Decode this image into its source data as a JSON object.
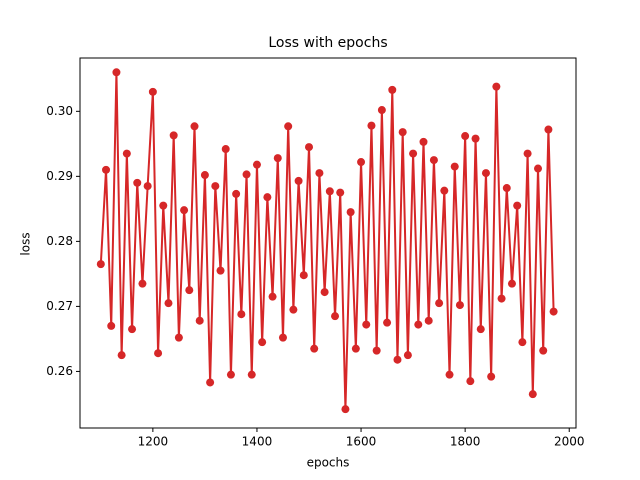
{
  "chart_data": {
    "type": "line",
    "title": "Loss with epochs",
    "x_label": "epochs",
    "y_label": "loss",
    "x": [
      1100,
      1110,
      1120,
      1130,
      1140,
      1150,
      1160,
      1170,
      1180,
      1190,
      1200,
      1210,
      1220,
      1230,
      1240,
      1250,
      1260,
      1270,
      1280,
      1290,
      1300,
      1310,
      1320,
      1330,
      1340,
      1350,
      1360,
      1370,
      1380,
      1390,
      1400,
      1410,
      1420,
      1430,
      1440,
      1450,
      1460,
      1470,
      1480,
      1490,
      1500,
      1510,
      1520,
      1530,
      1540,
      1550,
      1560,
      1570,
      1580,
      1590,
      1600,
      1610,
      1620,
      1630,
      1640,
      1650,
      1660,
      1670,
      1680,
      1690,
      1700,
      1710,
      1720,
      1730,
      1740,
      1750,
      1760,
      1770,
      1780,
      1790,
      1800,
      1810,
      1820,
      1830,
      1840,
      1850,
      1860,
      1870,
      1880,
      1890,
      1900,
      1910,
      1920,
      1930,
      1940,
      1950,
      1960,
      1970
    ],
    "series": [
      {
        "color": "#d62728",
        "values": [
          0.2765,
          0.291,
          0.267,
          0.306,
          0.2625,
          0.2935,
          0.2665,
          0.289,
          0.2735,
          0.2885,
          0.303,
          0.2628,
          0.2855,
          0.2705,
          0.2963,
          0.2652,
          0.2848,
          0.2725,
          0.2977,
          0.2678,
          0.2902,
          0.2583,
          0.2885,
          0.2755,
          0.2942,
          0.2595,
          0.2873,
          0.2688,
          0.2903,
          0.2595,
          0.2918,
          0.2645,
          0.2868,
          0.2715,
          0.2928,
          0.2652,
          0.2977,
          0.2695,
          0.2893,
          0.2748,
          0.2945,
          0.2635,
          0.2905,
          0.2722,
          0.2877,
          0.2685,
          0.2875,
          0.2542,
          0.2845,
          0.2635,
          0.2922,
          0.2672,
          0.2978,
          0.2632,
          0.3002,
          0.2675,
          0.3033,
          0.2618,
          0.2968,
          0.2625,
          0.2935,
          0.2672,
          0.2953,
          0.2678,
          0.2925,
          0.2705,
          0.2878,
          0.2595,
          0.2915,
          0.2702,
          0.2962,
          0.2585,
          0.2958,
          0.2665,
          0.2905,
          0.2592,
          0.3038,
          0.2712,
          0.2882,
          0.2735,
          0.2855,
          0.2645,
          0.2935,
          0.2565,
          0.2912,
          0.2632,
          0.2972,
          0.2692
        ]
      }
    ],
    "xlim": [
      1060,
      2013
    ],
    "ylim": [
      0.2513,
      0.3082
    ],
    "xticks": [
      1200,
      1400,
      1600,
      1800,
      2000
    ],
    "yticks": [
      {
        "value": 0.26,
        "label": "0.26"
      },
      {
        "value": 0.27,
        "label": "0.27"
      },
      {
        "value": 0.28,
        "label": "0.28"
      },
      {
        "value": 0.29,
        "label": "0.29"
      },
      {
        "value": 0.3,
        "label": "0.30"
      }
    ],
    "grid": false
  }
}
